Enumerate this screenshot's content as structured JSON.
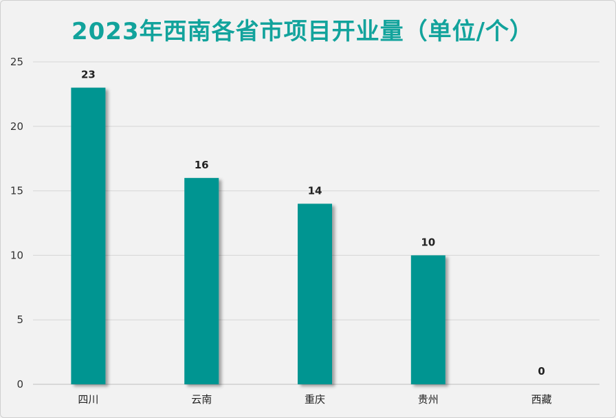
{
  "chart_data": {
    "type": "bar",
    "title": "2023年西南各省市项目开业量（单位/个）",
    "categories": [
      "四川",
      "云南",
      "重庆",
      "贵州",
      "西藏"
    ],
    "values": [
      23,
      16,
      14,
      10,
      0
    ],
    "data_labels": [
      "23",
      "16",
      "14",
      "10",
      "0"
    ],
    "ylim": [
      0,
      25
    ],
    "yticks": [
      0,
      5,
      10,
      15,
      20,
      25
    ],
    "ytick_labels": [
      "0",
      "5",
      "10",
      "15",
      "20",
      "25"
    ],
    "grid": true,
    "legend": "none",
    "bar_color": "#019591",
    "title_color": "#12a39c"
  }
}
